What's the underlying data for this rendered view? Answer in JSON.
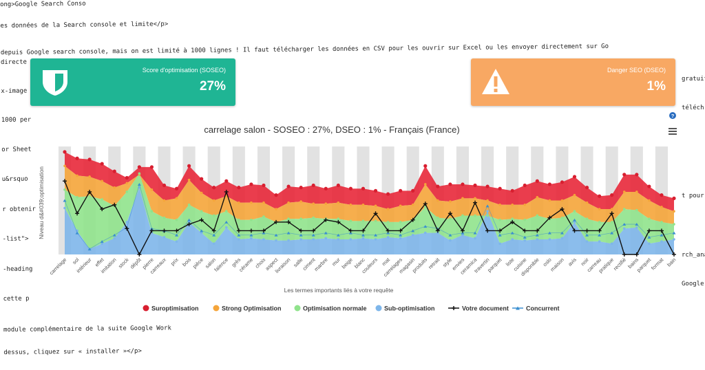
{
  "background_code": [
    {
      "text": "ong>Google Search Conso",
      "y": 2
    },
    {
      "text": "es données de la Search console et limite</p>",
      "y": 33
    },
    {
      "text": "   depuis Google search console, mais on est limité à 1000 lignes ! Il faut télécharger les données en CSV pour les ouvrir sur Excel ou les envoyer directement sur Go",
      "y": 72
    },
    {
      "text": " directe",
      "y": 86
    },
    {
      "text": "x-image",
      "y": 128
    },
    {
      "text": " 1000 per",
      "y": 170
    },
    {
      "text": "or Sheet",
      "y": 213
    },
    {
      "text": "u&rsquo",
      "y": 256
    },
    {
      "text": "r obtenir",
      "y": 300
    },
    {
      "text": "-list\">",
      "y": 343
    },
    {
      "text": "-heading",
      "y": 387
    },
    {
      "text": " cette p",
      "y": 430
    },
    {
      "text": "module complémentaire de la suite Google Work",
      "y": 475
    },
    {
      "text": " dessus, cliquez sur « installer »</p>",
      "y": 508
    }
  ],
  "background_right": [
    {
      "text": "gratuit",
      "y": 110
    },
    {
      "text": "téléch",
      "y": 152
    },
    {
      "text": "t pour v",
      "y": 280
    },
    {
      "text": "rch_anal",
      "y": 366
    },
    {
      "text": "Google d",
      "y": 408
    }
  ],
  "cards": {
    "soseo": {
      "label": "Score d'optimisation (SOSEO)",
      "value": "27%",
      "icon": "shield-icon",
      "color": "#1fb594"
    },
    "dseo": {
      "label": "Danger SEO (DSEO)",
      "value": "1%",
      "icon": "warning-icon",
      "color": "#f8a863"
    }
  },
  "toolbar": {
    "help_icon": "question-icon",
    "menu_icon": "hamburger-menu-icon"
  },
  "chart_data": {
    "type": "area",
    "title": "carrelage salon - SOSEO : 27%, DSEO : 1% - Français (France)",
    "xlabel": "Les termes importants liés à votre requête",
    "ylabel": "Niveau d&#039;optimisation",
    "grid": "alternating vertical bands",
    "legend_placement": "bottom",
    "ylim": [
      0,
      100
    ],
    "categories": [
      "carrelage",
      "sol",
      "intérieur",
      "effet",
      "imitation",
      "stock",
      "dépôt",
      "pierre",
      "carreaux",
      "prix",
      "bois",
      "pièce",
      "salon",
      "faïence",
      "grès",
      "cérame",
      "choix",
      "aspect",
      "livraison",
      "salle",
      "ciment",
      "marbre",
      "mur",
      "beige",
      "blanc",
      "couleurs",
      "mat",
      "carrelages",
      "magasin",
      "produits",
      "retrait",
      "style",
      "envies",
      "ceramica",
      "travertin",
      "parquet",
      "liste",
      "cuisine",
      "disponible",
      "oslo",
      "maison",
      "avis",
      "noir",
      "carreau",
      "pratique",
      "rectifié",
      "bains",
      "parquet",
      "format",
      "bain"
    ],
    "series": [
      {
        "name": "Suroptimisation",
        "color": "#e8283a",
        "values": [
          95,
          89,
          88,
          84,
          77,
          71,
          81,
          81,
          64,
          61,
          82,
          70,
          62,
          68,
          62,
          65,
          64,
          55,
          63,
          62,
          64,
          61,
          64,
          61,
          61,
          59,
          56,
          59,
          59,
          82,
          63,
          65,
          65,
          64,
          63,
          61,
          59,
          64,
          68,
          65,
          67,
          72,
          62,
          54,
          55,
          74,
          74,
          63,
          55,
          52
        ]
      },
      {
        "name": "Strong Optimisation",
        "color": "#f5a53a",
        "values": [
          82,
          73,
          72,
          68,
          62,
          66,
          74,
          60,
          50,
          52,
          69,
          57,
          50,
          54,
          48,
          48,
          48,
          42,
          48,
          49,
          47,
          47,
          48,
          46,
          46,
          45,
          42,
          45,
          46,
          65,
          50,
          49,
          52,
          52,
          50,
          46,
          46,
          46,
          53,
          50,
          50,
          55,
          48,
          42,
          42,
          58,
          58,
          50,
          44,
          40
        ]
      },
      {
        "name": "Optimisation normale",
        "color": "#90e38c",
        "values": [
          60,
          53,
          54,
          51,
          45,
          58,
          75,
          40,
          34,
          32,
          46,
          40,
          36,
          40,
          32,
          32,
          35,
          30,
          33,
          33,
          34,
          33,
          33,
          31,
          31,
          31,
          30,
          30,
          32,
          44,
          34,
          33,
          36,
          36,
          36,
          32,
          33,
          32,
          36,
          33,
          34,
          40,
          33,
          30,
          30,
          42,
          41,
          33,
          30,
          28
        ]
      },
      {
        "name": "Sub-optimisation",
        "color": "#7eb6ea",
        "values": [
          43,
          22,
          5,
          10,
          15,
          30,
          62,
          20,
          16,
          12,
          30,
          20,
          10,
          25,
          14,
          15,
          14,
          13,
          13,
          14,
          14,
          15,
          14,
          14,
          15,
          14,
          16,
          15,
          18,
          20,
          20,
          13,
          18,
          15,
          40,
          10,
          14,
          13,
          14,
          14,
          15,
          30,
          12,
          12,
          10,
          24,
          25,
          10,
          12,
          14
        ]
      },
      {
        "name": "Votre document",
        "color": "#111111",
        "values": [
          68,
          38,
          58,
          42,
          46,
          24,
          0,
          22,
          22,
          22,
          28,
          32,
          22,
          58,
          22,
          22,
          22,
          30,
          30,
          22,
          22,
          32,
          30,
          22,
          22,
          38,
          22,
          22,
          32,
          47,
          22,
          38,
          22,
          48,
          22,
          22,
          30,
          22,
          22,
          34,
          42,
          22,
          22,
          22,
          38,
          0,
          0,
          22,
          22,
          0
        ]
      },
      {
        "name": "Concurrent",
        "color": "#3a8fd0",
        "values": [
          50,
          20,
          5,
          12,
          18,
          25,
          65,
          24,
          22,
          18,
          32,
          22,
          18,
          30,
          18,
          18,
          20,
          18,
          20,
          18,
          18,
          20,
          18,
          20,
          18,
          18,
          20,
          18,
          22,
          26,
          24,
          18,
          20,
          20,
          45,
          18,
          20,
          16,
          18,
          20,
          20,
          32,
          18,
          18,
          20,
          28,
          28,
          16,
          18,
          20
        ]
      }
    ]
  }
}
